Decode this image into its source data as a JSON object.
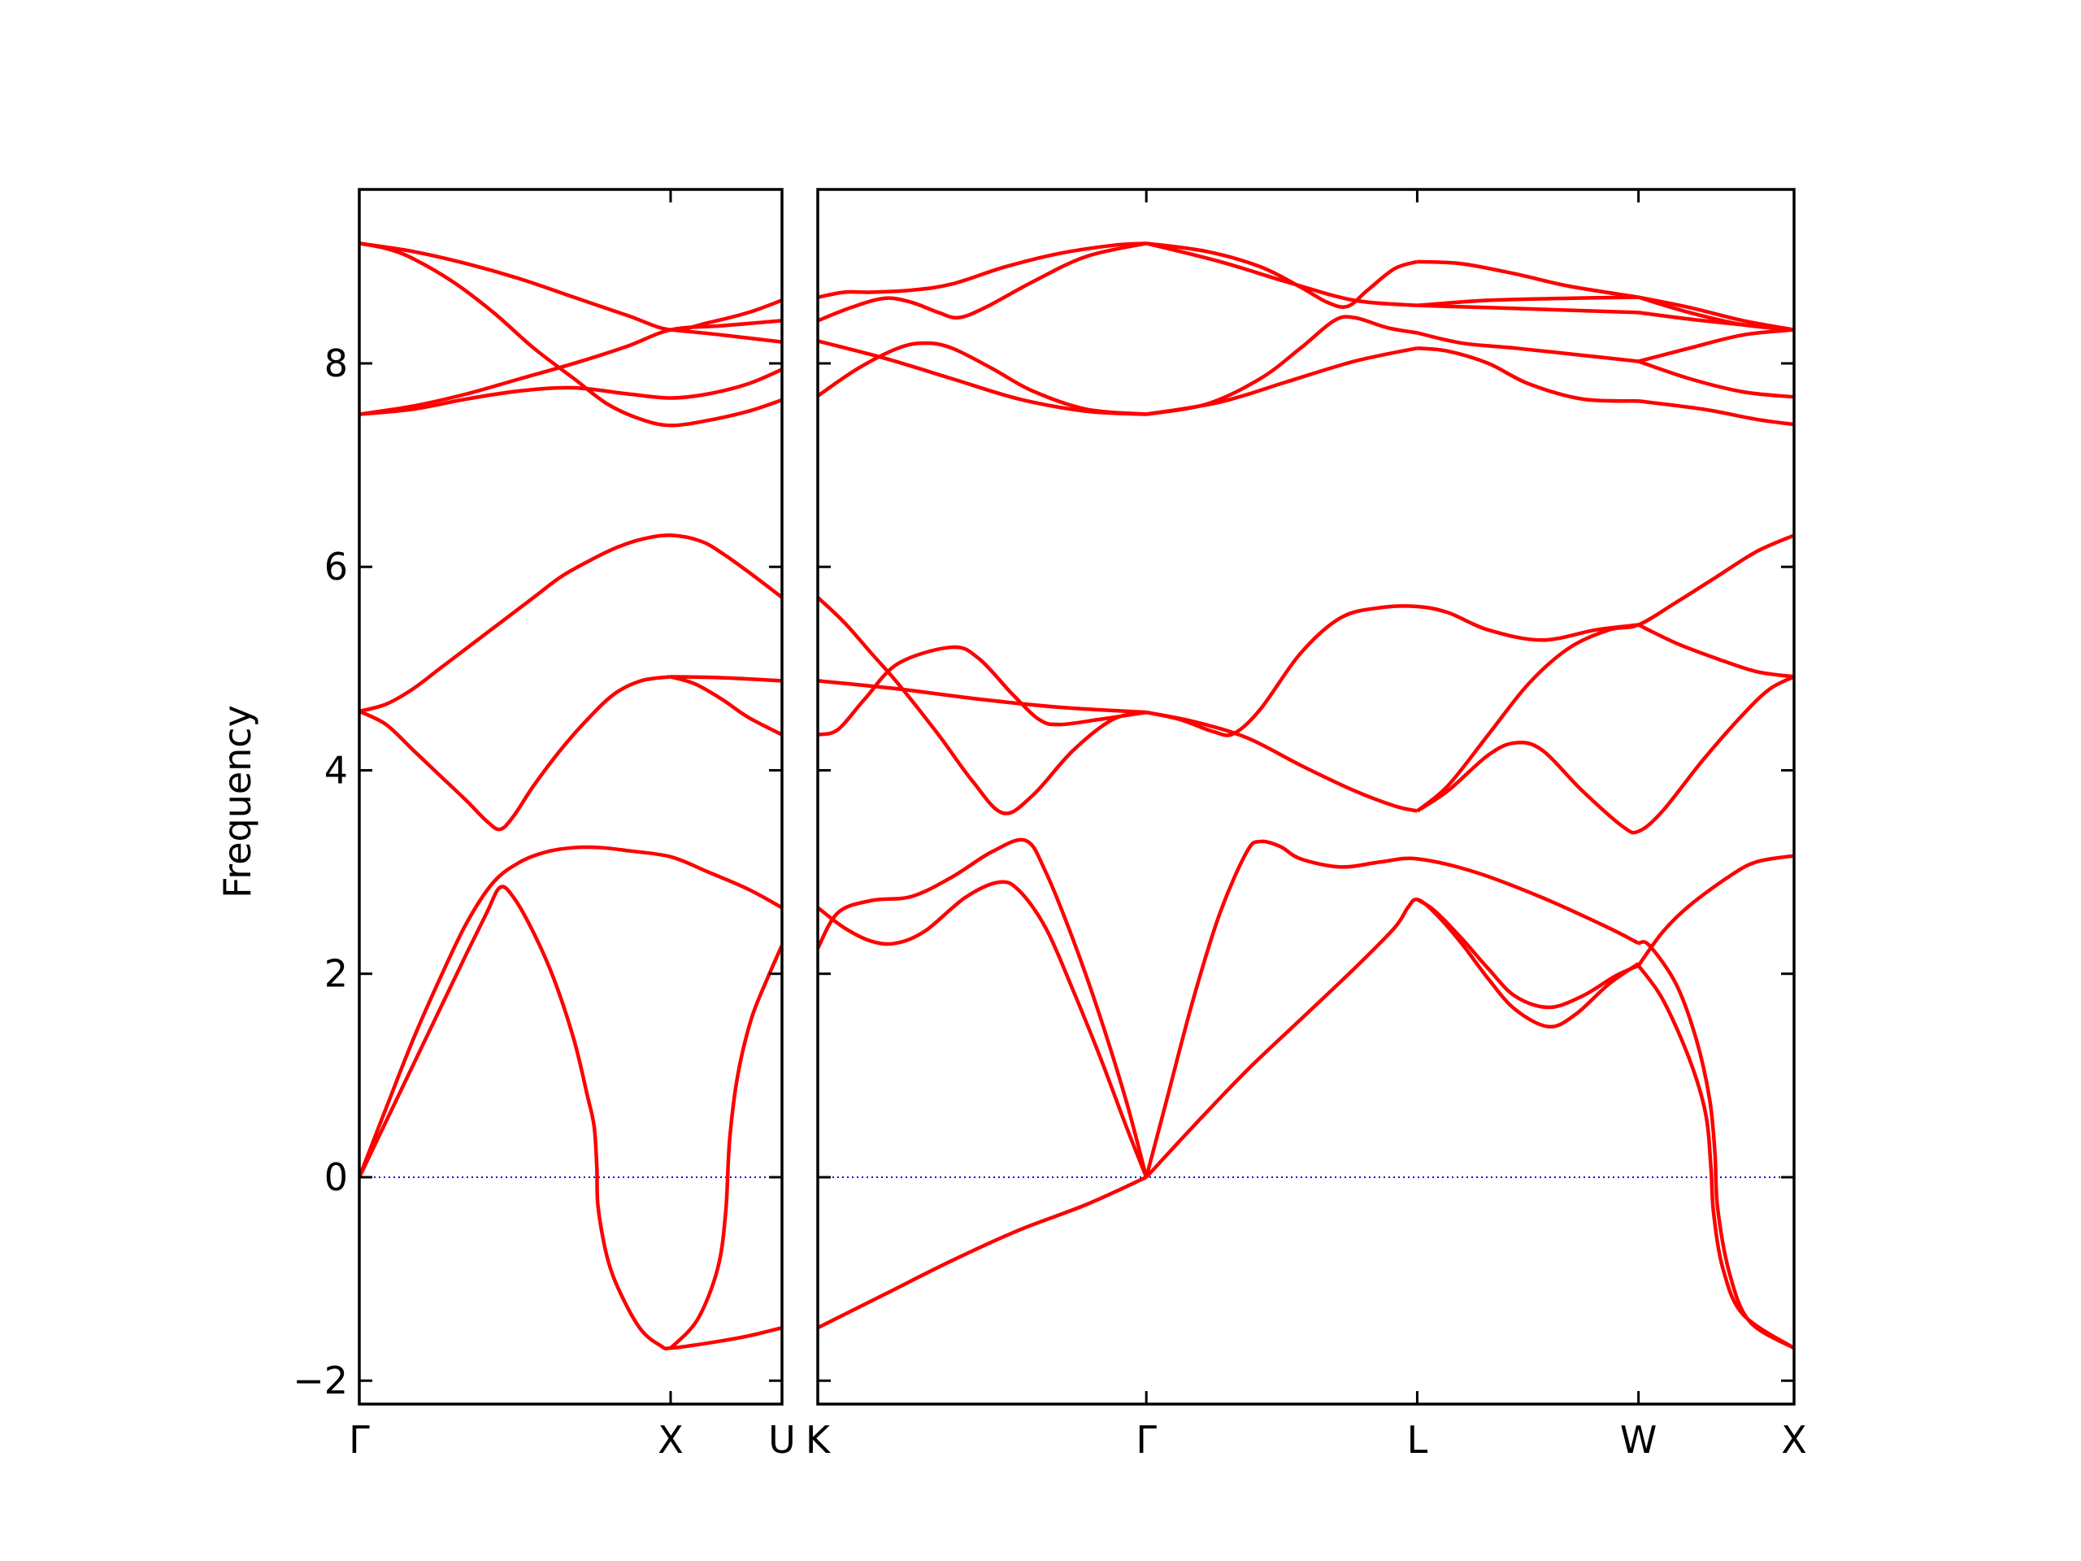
{
  "chart_data": [
    {
      "type": "line",
      "ylabel": "Frequency",
      "color": "#ff0000",
      "zero_line_color": "#0000ff",
      "xlim": [
        0,
        315
      ],
      "xticks": [
        {
          "value": 0,
          "label": "Γ"
        },
        {
          "value": 232,
          "label": "X"
        },
        {
          "value": 315,
          "label": "U"
        }
      ],
      "ylim": [
        -2.23,
        9.71
      ],
      "yticks": [
        {
          "value": -2,
          "label": "−2"
        },
        0,
        2,
        4,
        6,
        8
      ],
      "series": [
        {
          "x": [
            0,
            20,
            40,
            60,
            80,
            95,
            105,
            115,
            130,
            145,
            160,
            170,
            175,
            177,
            178,
            185,
            195,
            210,
            225,
            232,
            260,
            290,
            315
          ],
          "values": [
            0,
            0.55,
            1.1,
            1.65,
            2.2,
            2.6,
            2.85,
            2.75,
            2.4,
            1.95,
            1.35,
            0.8,
            0.5,
            0.1,
            -0.3,
            -0.8,
            -1.15,
            -1.5,
            -1.66,
            -1.68,
            -1.63,
            -1.56,
            -1.48
          ]
        },
        {
          "x": [
            0,
            20,
            40,
            60,
            80,
            100,
            120,
            140,
            160,
            180,
            200,
            232,
            260,
            290,
            315
          ],
          "values": [
            0,
            0.68,
            1.35,
            1.95,
            2.5,
            2.9,
            3.1,
            3.2,
            3.24,
            3.24,
            3.21,
            3.15,
            3.0,
            2.83,
            2.65
          ]
        },
        {
          "x": [
            232,
            252,
            267,
            273,
            276,
            282,
            292,
            304,
            315
          ],
          "values": [
            -1.68,
            -1.4,
            -0.9,
            -0.35,
            0.37,
            1.0,
            1.55,
            1.95,
            2.28
          ]
        },
        {
          "x": [
            0,
            20,
            40,
            60,
            80,
            95,
            105,
            115,
            130,
            150,
            170,
            190,
            210,
            232
          ],
          "values": [
            4.58,
            4.45,
            4.2,
            3.95,
            3.7,
            3.5,
            3.42,
            3.55,
            3.85,
            4.2,
            4.5,
            4.75,
            4.88,
            4.92
          ]
        },
        {
          "x": [
            232,
            270,
            315
          ],
          "values": [
            4.92,
            4.91,
            4.88
          ]
        },
        {
          "x": [
            232,
            250,
            270,
            290,
            315
          ],
          "values": [
            4.92,
            4.85,
            4.7,
            4.52,
            4.35
          ]
        },
        {
          "x": [
            0,
            20,
            40,
            60,
            80,
            105,
            130,
            150,
            170,
            190,
            210,
            232,
            255,
            272,
            290,
            315
          ],
          "values": [
            4.58,
            4.65,
            4.8,
            5.0,
            5.2,
            5.45,
            5.7,
            5.9,
            6.05,
            6.18,
            6.27,
            6.31,
            6.25,
            6.12,
            5.95,
            5.7
          ]
        },
        {
          "x": [
            0,
            40,
            80,
            120,
            160,
            200,
            232,
            260,
            290,
            315
          ],
          "values": [
            9.18,
            9.1,
            8.98,
            8.83,
            8.65,
            8.47,
            8.33,
            8.4,
            8.5,
            8.62
          ]
        },
        {
          "x": [
            0,
            20,
            40,
            70,
            100,
            130,
            160,
            185,
            210,
            232,
            260,
            290,
            315
          ],
          "values": [
            9.18,
            9.13,
            9.03,
            8.8,
            8.5,
            8.15,
            7.85,
            7.6,
            7.45,
            7.39,
            7.44,
            7.53,
            7.64
          ]
        },
        {
          "x": [
            0,
            40,
            80,
            120,
            160,
            200,
            232,
            270,
            315
          ],
          "values": [
            7.5,
            7.58,
            7.7,
            7.85,
            8.0,
            8.17,
            8.33,
            8.37,
            8.42
          ]
        },
        {
          "x": [
            0,
            40,
            80,
            120,
            160,
            200,
            232,
            260,
            290,
            315
          ],
          "values": [
            7.5,
            7.55,
            7.65,
            7.73,
            7.76,
            7.7,
            7.66,
            7.7,
            7.8,
            7.94
          ]
        },
        {
          "x": [
            232,
            270,
            315
          ],
          "values": [
            8.33,
            8.28,
            8.21
          ]
        }
      ]
    },
    {
      "type": "line",
      "color": "#ff0000",
      "zero_line_color": "#0000ff",
      "xlim": [
        0,
        728
      ],
      "xticks": [
        {
          "value": 0,
          "label": "K"
        },
        {
          "value": 245,
          "label": "Γ"
        },
        {
          "value": 447,
          "label": "L"
        },
        {
          "value": 612,
          "label": "W"
        },
        {
          "value": 728,
          "label": "X"
        }
      ],
      "ylim": [
        -2.23,
        9.71
      ],
      "series": [
        {
          "x": [
            0,
            50,
            100,
            150,
            200,
            245
          ],
          "values": [
            -1.48,
            -1.15,
            -0.82,
            -0.52,
            -0.27,
            0
          ]
        },
        {
          "x": [
            0,
            15,
            40,
            70,
            100,
            130,
            155,
            170,
            190,
            210,
            230,
            245
          ],
          "values": [
            2.25,
            2.6,
            2.72,
            2.76,
            2.95,
            3.2,
            3.31,
            3.0,
            2.35,
            1.6,
            0.75,
            0
          ]
        },
        {
          "x": [
            0,
            20,
            40,
            58,
            80,
            110,
            135,
            150,
            170,
            190,
            210,
            230,
            245
          ],
          "values": [
            2.65,
            2.45,
            2.32,
            2.3,
            2.42,
            2.75,
            2.9,
            2.82,
            2.45,
            1.85,
            1.2,
            0.5,
            0
          ]
        },
        {
          "x": [
            245,
            260,
            280,
            300,
            320,
            330,
            345,
            360,
            390,
            420,
            447,
            490,
            540,
            590,
            612
          ],
          "values": [
            0,
            0.75,
            1.75,
            2.6,
            3.2,
            3.3,
            3.25,
            3.13,
            3.05,
            3.1,
            3.13,
            3.0,
            2.75,
            2.45,
            2.3
          ]
        },
        {
          "x": [
            245,
            280,
            320,
            360,
            400,
            430,
            440,
            447,
            460,
            480,
            500,
            520,
            545,
            565,
            590,
            612
          ],
          "values": [
            0,
            0.5,
            1.05,
            1.55,
            2.05,
            2.45,
            2.65,
            2.73,
            2.6,
            2.3,
            1.95,
            1.65,
            1.48,
            1.6,
            1.9,
            2.1
          ]
        },
        {
          "x": [
            447,
            460,
            480,
            500,
            520,
            545,
            570,
            595,
            612
          ],
          "values": [
            2.73,
            2.62,
            2.35,
            2.05,
            1.78,
            1.67,
            1.78,
            1.98,
            2.08
          ]
        },
        {
          "x": [
            612,
            620,
            640,
            655,
            665,
            669,
            671,
            680,
            695,
            728
          ],
          "values": [
            2.3,
            2.28,
            1.9,
            1.36,
            0.77,
            0.24,
            -0.3,
            -0.95,
            -1.42,
            -1.68
          ]
        },
        {
          "x": [
            612,
            630,
            650,
            662,
            666,
            668,
            675,
            690,
            728
          ],
          "values": [
            2.08,
            1.75,
            1.16,
            0.63,
            0.1,
            -0.35,
            -0.9,
            -1.35,
            -1.68
          ]
        },
        {
          "x": [
            612,
            630,
            650,
            680,
            700,
            728
          ],
          "values": [
            2.08,
            2.41,
            2.67,
            2.96,
            3.1,
            3.16
          ]
        },
        {
          "x": [
            0,
            20,
            40,
            60,
            90,
            115,
            138,
            160,
            190,
            220,
            245
          ],
          "values": [
            5.7,
            5.45,
            5.15,
            4.85,
            4.35,
            3.9,
            3.58,
            3.75,
            4.19,
            4.5,
            4.57
          ]
        },
        {
          "x": [
            0,
            15,
            35,
            60,
            100,
            120,
            145,
            165,
            180,
            210,
            245
          ],
          "values": [
            4.35,
            4.4,
            4.7,
            5.05,
            5.21,
            5.1,
            4.75,
            4.5,
            4.45,
            4.5,
            4.57
          ]
        },
        {
          "x": [
            0,
            60,
            120,
            180,
            245
          ],
          "values": [
            4.88,
            4.8,
            4.7,
            4.62,
            4.57
          ]
        },
        {
          "x": [
            245,
            270,
            295,
            310,
            330,
            360,
            390,
            420,
            447,
            470,
            500,
            540,
            580,
            612
          ],
          "values": [
            4.57,
            4.5,
            4.38,
            4.36,
            4.6,
            5.15,
            5.5,
            5.6,
            5.61,
            5.55,
            5.38,
            5.28,
            5.38,
            5.43
          ]
        },
        {
          "x": [
            245,
            280,
            320,
            360,
            400,
            430,
            447
          ],
          "values": [
            4.57,
            4.48,
            4.32,
            4.05,
            3.8,
            3.65,
            3.6
          ]
        },
        {
          "x": [
            447,
            470,
            500,
            520,
            540,
            570,
            600,
            612,
            630,
            660,
            690,
            710,
            728
          ],
          "values": [
            3.6,
            3.8,
            4.15,
            4.27,
            4.2,
            3.8,
            3.45,
            3.4,
            3.6,
            4.1,
            4.55,
            4.8,
            4.92
          ]
        },
        {
          "x": [
            447,
            470,
            500,
            530,
            560,
            590,
            612,
            640,
            670,
            700,
            728
          ],
          "values": [
            3.6,
            3.85,
            4.35,
            4.85,
            5.2,
            5.38,
            5.43,
            5.65,
            5.9,
            6.15,
            6.31
          ]
        },
        {
          "x": [
            612,
            640,
            670,
            700,
            728
          ],
          "values": [
            5.43,
            5.25,
            5.1,
            4.97,
            4.92
          ]
        },
        {
          "x": [
            0,
            20,
            40,
            70,
            100,
            140,
            180,
            220,
            245
          ],
          "values": [
            8.65,
            8.7,
            8.7,
            8.72,
            8.78,
            8.95,
            9.08,
            9.16,
            9.18
          ]
        },
        {
          "x": [
            0,
            25,
            50,
            70,
            90,
            105,
            125,
            160,
            200,
            245
          ],
          "values": [
            8.42,
            8.55,
            8.64,
            8.6,
            8.5,
            8.45,
            8.55,
            8.8,
            9.05,
            9.18
          ]
        },
        {
          "x": [
            0,
            50,
            100,
            150,
            200,
            245
          ],
          "values": [
            8.22,
            8.05,
            7.85,
            7.65,
            7.53,
            7.5
          ]
        },
        {
          "x": [
            0,
            30,
            60,
            80,
            100,
            130,
            160,
            200,
            245
          ],
          "values": [
            7.68,
            7.95,
            8.15,
            8.2,
            8.15,
            7.95,
            7.73,
            7.55,
            7.5
          ]
        },
        {
          "x": [
            245,
            290,
            330,
            360,
            380,
            395,
            410,
            430,
            447
          ],
          "values": [
            9.18,
            9.1,
            8.95,
            8.75,
            8.6,
            8.56,
            8.72,
            8.93,
            9.0
          ]
        },
        {
          "x": [
            245,
            300,
            350,
            400,
            447
          ],
          "values": [
            9.18,
            9.0,
            8.8,
            8.62,
            8.57
          ]
        },
        {
          "x": [
            245,
            290,
            330,
            360,
            385,
            400,
            425,
            447
          ],
          "values": [
            7.5,
            7.6,
            7.85,
            8.15,
            8.42,
            8.45,
            8.35,
            8.3
          ]
        },
        {
          "x": [
            245,
            300,
            350,
            400,
            447
          ],
          "values": [
            7.5,
            7.62,
            7.82,
            8.02,
            8.15
          ]
        },
        {
          "x": [
            447,
            480,
            520,
            560,
            612
          ],
          "values": [
            9.0,
            8.98,
            8.88,
            8.76,
            8.65
          ]
        },
        {
          "x": [
            447,
            500,
            560,
            612
          ],
          "values": [
            8.57,
            8.62,
            8.64,
            8.65
          ]
        },
        {
          "x": [
            447,
            520,
            612
          ],
          "values": [
            8.57,
            8.54,
            8.5
          ]
        },
        {
          "x": [
            447,
            480,
            520,
            570,
            612
          ],
          "values": [
            8.3,
            8.2,
            8.15,
            8.08,
            8.02
          ]
        },
        {
          "x": [
            447,
            470,
            500,
            530,
            570,
            612
          ],
          "values": [
            8.15,
            8.12,
            8.0,
            7.8,
            7.65,
            7.63
          ]
        },
        {
          "x": [
            612,
            650,
            690,
            728
          ],
          "values": [
            8.65,
            8.55,
            8.42,
            8.33
          ]
        },
        {
          "x": [
            612,
            650,
            690,
            728
          ],
          "values": [
            8.65,
            8.5,
            8.38,
            8.33
          ]
        },
        {
          "x": [
            612,
            660,
            728
          ],
          "values": [
            8.5,
            8.42,
            8.33
          ]
        },
        {
          "x": [
            612,
            650,
            690,
            728
          ],
          "values": [
            8.02,
            8.15,
            8.28,
            8.33
          ]
        },
        {
          "x": [
            612,
            650,
            690,
            728
          ],
          "values": [
            8.02,
            7.85,
            7.72,
            7.67
          ]
        },
        {
          "x": [
            612,
            660,
            700,
            728
          ],
          "values": [
            7.63,
            7.55,
            7.45,
            7.4
          ]
        }
      ]
    }
  ]
}
